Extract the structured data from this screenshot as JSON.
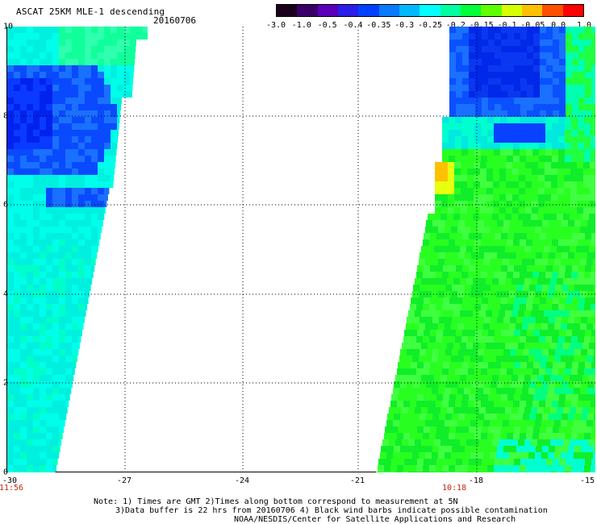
{
  "header": {
    "title": "ASCAT 25KM MLE-1 descending",
    "date": "20160706"
  },
  "colorbar": {
    "labels": [
      "-3.0",
      "-1.0",
      "-0.5",
      "-0.4",
      "-0.35",
      "-0.3",
      "-0.25",
      "-0.2",
      "-0.15",
      "-0.1",
      "-0.05",
      "0.0",
      "1.0"
    ],
    "colors": [
      "#1a001a",
      "#3a0068",
      "#5a00b8",
      "#2a1ee8",
      "#0040ff",
      "#0a7aff",
      "#00b8ff",
      "#00ffff",
      "#00ffa0",
      "#00ff3a",
      "#60ff00",
      "#d8ff00",
      "#ffc000",
      "#ff5000",
      "#ff0000"
    ]
  },
  "axes": {
    "y_ticks": [
      "10",
      "8",
      "6",
      "4",
      "2",
      "0"
    ],
    "x_ticks": [
      "-30",
      "-27",
      "-24",
      "-21",
      "-18",
      "-15"
    ],
    "x_range": [
      -30,
      -15
    ],
    "y_range": [
      0,
      10
    ],
    "grid": "dotted"
  },
  "swath_times": [
    "11:56",
    "10:18"
  ],
  "notes": [
    "Note: 1) Times are GMT 2)Times along bottom correspond to measurement at 5N",
    "3)Data buffer is 22 hrs from 20160706 4) Black wind barbs indicate possible contamination",
    "NOAA/NESDIS/Center for Satellite Applications and Research"
  ]
}
